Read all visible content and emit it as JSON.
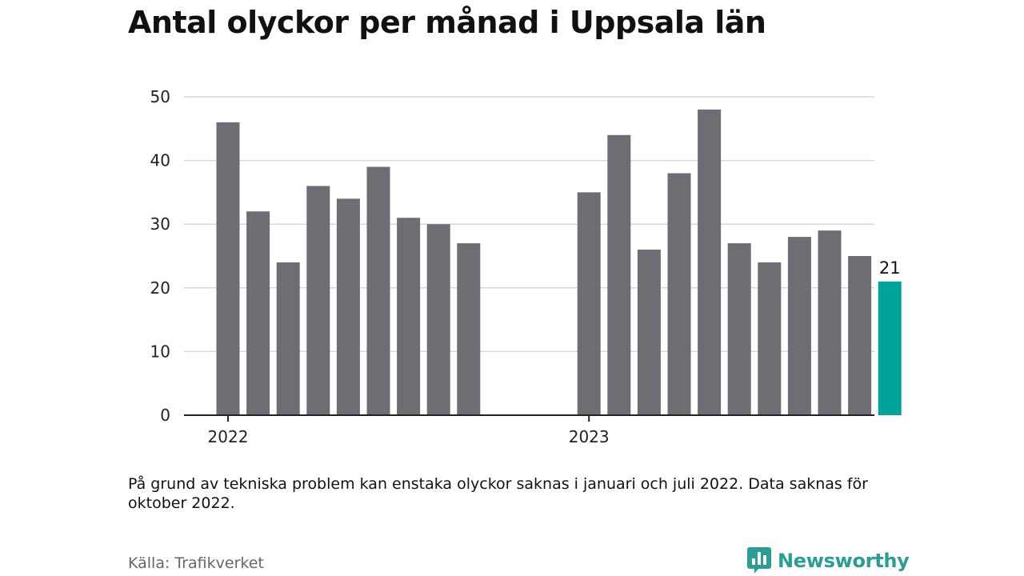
{
  "header": {
    "title": "Antal olyckor per månad i Uppsala län"
  },
  "chart_data": {
    "type": "bar",
    "title": "Antal olyckor per månad i Uppsala län",
    "xlabel": "",
    "ylabel": "",
    "ylim": [
      0,
      50
    ],
    "yticks": [
      "0",
      "10",
      "20",
      "30",
      "40",
      "50"
    ],
    "xticks": [
      "2022",
      "2023"
    ],
    "grid": true,
    "categories": [
      "2022-01",
      "2022-02",
      "2022-03",
      "2022-04",
      "2022-05",
      "2022-06",
      "2022-07",
      "2022-08",
      "2022-09",
      "2022-10",
      "2022-11",
      "2022-12",
      "2023-01",
      "2023-02",
      "2023-03",
      "2023-04",
      "2023-05",
      "2023-06",
      "2023-07",
      "2023-08",
      "2023-09",
      "2023-10",
      "2023-11"
    ],
    "values": [
      46,
      32,
      24,
      36,
      34,
      39,
      31,
      30,
      27,
      null,
      null,
      null,
      35,
      44,
      26,
      38,
      48,
      27,
      24,
      28,
      29,
      25,
      21
    ],
    "colors": {
      "bar": "#6e6d73",
      "highlight": "#00a39a",
      "axis": "#222222",
      "grid": "#d9d9d9"
    },
    "highlight_index": 22,
    "data_labels": [
      {
        "category": "2023-11",
        "text": "21"
      }
    ]
  },
  "footer": {
    "note": "På grund av tekniska problem kan enstaka olyckor saknas i januari och juli 2022. Data saknas för oktober 2022.",
    "source": "Källa: Trafikverket",
    "brand": {
      "name": "Newsworthy",
      "icon": "newsworthy-logo-icon",
      "color": "#2a9d94"
    }
  }
}
